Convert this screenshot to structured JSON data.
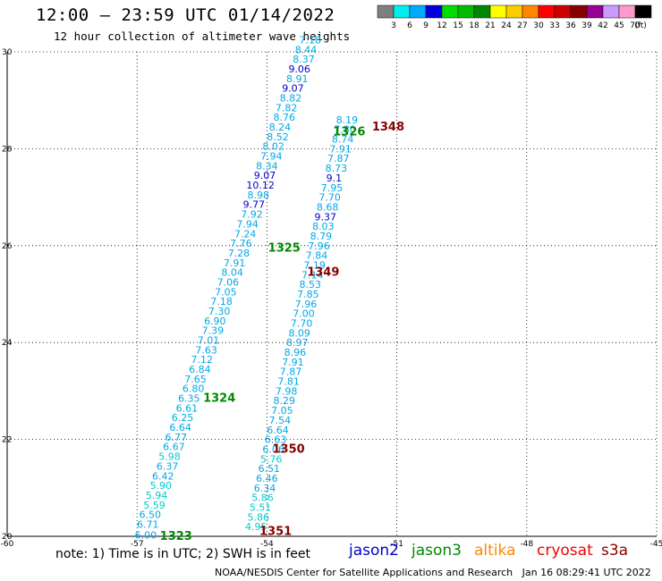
{
  "header": {
    "title": "12:00 — 23:59 UTC 01/14/2022",
    "subtitle": "12 hour collection of altimeter wave heights"
  },
  "colorbar": {
    "colors": [
      "#7f7f7f",
      "#00eeee",
      "#00aaff",
      "#0000dd",
      "#00dd00",
      "#00bb00",
      "#008800",
      "#ffff00",
      "#ffcc00",
      "#ff8800",
      "#ff0000",
      "#cc0000",
      "#880000",
      "#990099",
      "#cc99ff",
      "#ff99cc",
      "#000000"
    ],
    "labels": [
      "3",
      "6",
      "9",
      "12",
      "15",
      "18",
      "21",
      "24",
      "27",
      "30",
      "33",
      "36",
      "39",
      "42",
      "45",
      "70"
    ],
    "unit": "(ft)"
  },
  "chart_data": {
    "type": "scatter",
    "xlim": [
      -60,
      -45
    ],
    "ylim": [
      20,
      30
    ],
    "x_ticks": [
      "-60",
      "-57",
      "-54",
      "-51",
      "-48",
      "-45"
    ],
    "y_ticks": [
      "20",
      "22",
      "24",
      "26",
      "28",
      "30"
    ],
    "grid": true,
    "series": [
      {
        "name": "jason3",
        "color": "#00bb00",
        "points": [
          {
            "pass": "track-A",
            "lon": -56.8,
            "lat": 20.03,
            "swh": "6.00"
          },
          {
            "lon": -56.75,
            "lat": 20.25,
            "swh": "6.71"
          },
          {
            "lon": -56.7,
            "lat": 20.45,
            "swh": "6.50"
          },
          {
            "lon": -56.6,
            "lat": 20.65,
            "swh": "5.59"
          },
          {
            "lon": -56.55,
            "lat": 20.85,
            "swh": "5.94"
          },
          {
            "lon": -56.45,
            "lat": 21.05,
            "swh": "5.90"
          },
          {
            "lon": -56.4,
            "lat": 21.25,
            "swh": "6.42"
          },
          {
            "lon": -56.3,
            "lat": 21.45,
            "swh": "6.37"
          },
          {
            "lon": -56.25,
            "lat": 21.65,
            "swh": "5.98"
          },
          {
            "lon": -56.15,
            "lat": 21.85,
            "swh": "6.67"
          },
          {
            "lon": -56.1,
            "lat": 22.05,
            "swh": "6.77"
          },
          {
            "lon": -56.0,
            "lat": 22.25,
            "swh": "6.64"
          },
          {
            "lon": -55.95,
            "lat": 22.45,
            "swh": "6.25"
          },
          {
            "lon": -55.85,
            "lat": 22.65,
            "swh": "6.61"
          },
          {
            "lon": -55.8,
            "lat": 22.85,
            "swh": "6.35"
          },
          {
            "lon": -55.7,
            "lat": 23.05,
            "swh": "6.80"
          },
          {
            "lon": -55.65,
            "lat": 23.25,
            "swh": "7.65"
          },
          {
            "lon": -55.55,
            "lat": 23.45,
            "swh": "6.84"
          },
          {
            "lon": -55.5,
            "lat": 23.65,
            "swh": "7.12"
          },
          {
            "lon": -55.4,
            "lat": 23.85,
            "swh": "7.63"
          },
          {
            "lon": -55.35,
            "lat": 24.05,
            "swh": "7.01"
          },
          {
            "lon": -55.25,
            "lat": 24.25,
            "swh": "7.39"
          },
          {
            "lon": -55.2,
            "lat": 24.45,
            "swh": "6.90"
          },
          {
            "lon": -55.1,
            "lat": 24.65,
            "swh": "7.30"
          },
          {
            "lon": -55.05,
            "lat": 24.85,
            "swh": "7.18"
          },
          {
            "lon": -54.95,
            "lat": 25.05,
            "swh": "7.05"
          },
          {
            "lon": -54.9,
            "lat": 25.25,
            "swh": "7.06"
          },
          {
            "lon": -54.8,
            "lat": 25.45,
            "swh": "8.04"
          },
          {
            "lon": -54.75,
            "lat": 25.65,
            "swh": "7.91"
          },
          {
            "lon": -54.65,
            "lat": 25.85,
            "swh": "7.28"
          },
          {
            "lon": -54.6,
            "lat": 26.05,
            "swh": "7.76"
          },
          {
            "lon": -54.5,
            "lat": 26.25,
            "swh": "7.24"
          },
          {
            "lon": -54.45,
            "lat": 26.45,
            "swh": "7.94"
          },
          {
            "lon": -54.35,
            "lat": 26.65,
            "swh": "7.92"
          },
          {
            "lon": -54.3,
            "lat": 26.85,
            "swh": "9.77"
          },
          {
            "lon": -54.2,
            "lat": 27.05,
            "swh": "8.98"
          },
          {
            "lon": -54.15,
            "lat": 27.25,
            "swh": "10.12"
          },
          {
            "lon": -54.05,
            "lat": 27.45,
            "swh": "9.07"
          },
          {
            "lon": -54.0,
            "lat": 27.65,
            "swh": "8.34"
          },
          {
            "lon": -53.9,
            "lat": 27.85,
            "swh": "7.94"
          },
          {
            "lon": -53.85,
            "lat": 28.05,
            "swh": "8.02"
          },
          {
            "lon": -53.75,
            "lat": 28.25,
            "swh": "8.52"
          },
          {
            "lon": -53.7,
            "lat": 28.45,
            "swh": "8.24"
          },
          {
            "lon": -53.6,
            "lat": 28.65,
            "swh": "8.76"
          },
          {
            "lon": -53.55,
            "lat": 28.85,
            "swh": "7.82"
          },
          {
            "lon": -53.45,
            "lat": 29.05,
            "swh": "8.82"
          },
          {
            "lon": -53.4,
            "lat": 29.25,
            "swh": "9.07"
          },
          {
            "lon": -53.3,
            "lat": 29.45,
            "swh": "8.91"
          },
          {
            "lon": -53.25,
            "lat": 29.65,
            "swh": "9.06"
          },
          {
            "lon": -53.15,
            "lat": 29.85,
            "swh": "8.37"
          },
          {
            "lon": -53.1,
            "lat": 30.05,
            "swh": "8.44"
          },
          {
            "lon": -53.0,
            "lat": 30.25,
            "swh": "7.18"
          },
          {
            "pass": "track-B",
            "lon": -54.25,
            "lat": 20.2,
            "swh": "4.95"
          },
          {
            "lon": -54.2,
            "lat": 20.4,
            "swh": "5.86"
          },
          {
            "lon": -54.15,
            "lat": 20.6,
            "swh": "5.51"
          },
          {
            "lon": -54.1,
            "lat": 20.8,
            "swh": "5.86"
          },
          {
            "lon": -54.05,
            "lat": 21.0,
            "swh": "6.34"
          },
          {
            "lon": -54.0,
            "lat": 21.2,
            "swh": "6.46"
          },
          {
            "lon": -53.95,
            "lat": 21.4,
            "swh": "6.51"
          },
          {
            "lon": -53.9,
            "lat": 21.6,
            "swh": "5.76"
          },
          {
            "lon": -53.85,
            "lat": 21.8,
            "swh": "6.06"
          },
          {
            "lon": -53.8,
            "lat": 22.0,
            "swh": "6.63"
          },
          {
            "lon": -53.75,
            "lat": 22.2,
            "swh": "6.64"
          },
          {
            "lon": -53.7,
            "lat": 22.4,
            "swh": "7.54"
          },
          {
            "lon": -53.65,
            "lat": 22.6,
            "swh": "7.05"
          },
          {
            "lon": -53.6,
            "lat": 22.8,
            "swh": "8.29"
          },
          {
            "lon": -53.55,
            "lat": 23.0,
            "swh": "7.98"
          },
          {
            "lon": -53.5,
            "lat": 23.2,
            "swh": "7.81"
          },
          {
            "lon": -53.45,
            "lat": 23.4,
            "swh": "7.87"
          },
          {
            "lon": -53.4,
            "lat": 23.6,
            "swh": "7.91"
          },
          {
            "lon": -53.35,
            "lat": 23.8,
            "swh": "8.96"
          },
          {
            "lon": -53.3,
            "lat": 24.0,
            "swh": "8.97"
          },
          {
            "lon": -53.25,
            "lat": 24.2,
            "swh": "8.09"
          },
          {
            "lon": -53.2,
            "lat": 24.4,
            "swh": "7.70"
          },
          {
            "lon": -53.15,
            "lat": 24.6,
            "swh": "7.00"
          },
          {
            "lon": -53.1,
            "lat": 24.8,
            "swh": "7.96"
          },
          {
            "lon": -53.05,
            "lat": 25.0,
            "swh": "7.85"
          },
          {
            "lon": -53.0,
            "lat": 25.2,
            "swh": "8.53"
          },
          {
            "lon": -52.95,
            "lat": 25.4,
            "swh": "7.14"
          },
          {
            "lon": -52.9,
            "lat": 25.6,
            "swh": "7.19"
          },
          {
            "lon": -52.85,
            "lat": 25.8,
            "swh": "7.84"
          },
          {
            "lon": -52.8,
            "lat": 26.0,
            "swh": "7.96"
          },
          {
            "lon": -52.75,
            "lat": 26.2,
            "swh": "8.79"
          },
          {
            "lon": -52.7,
            "lat": 26.4,
            "swh": "8.03"
          },
          {
            "lon": -52.65,
            "lat": 26.6,
            "swh": "9.37"
          },
          {
            "lon": -52.6,
            "lat": 26.8,
            "swh": "8.68"
          },
          {
            "lon": -52.55,
            "lat": 27.0,
            "swh": "7.70"
          },
          {
            "lon": -52.5,
            "lat": 27.2,
            "swh": "7.95"
          },
          {
            "lon": -52.45,
            "lat": 27.4,
            "swh": "9.1"
          },
          {
            "lon": -52.4,
            "lat": 27.6,
            "swh": "8.73"
          },
          {
            "lon": -52.35,
            "lat": 27.8,
            "swh": "7.87"
          },
          {
            "lon": -52.3,
            "lat": 28.0,
            "swh": "7.91"
          },
          {
            "lon": -52.25,
            "lat": 28.2,
            "swh": "8.74"
          },
          {
            "lon": -52.2,
            "lat": 28.4,
            "swh": "7.80"
          },
          {
            "lon": -52.15,
            "lat": 28.6,
            "swh": "8.19"
          }
        ]
      }
    ],
    "pass_labels": [
      {
        "text": "1323",
        "color": "#008800"
      },
      {
        "text": "1324",
        "color": "#008800"
      },
      {
        "text": "1325",
        "color": "#008800"
      },
      {
        "text": "1326",
        "color": "#008800"
      },
      {
        "text": "1348",
        "color": "#880000"
      },
      {
        "text": "1349",
        "color": "#880000"
      },
      {
        "text": "1350",
        "color": "#880000"
      },
      {
        "text": "1351",
        "color": "#880000"
      }
    ]
  },
  "footer": {
    "note": "note: 1) Time is in UTC; 2) SWH is in feet",
    "credit": "NOAA/NESDIS Center for Satellite Applications and Research   Jan 16 08:29:41 UTC 2022",
    "satellites": [
      {
        "name": "jason2",
        "color": "#0000cc"
      },
      {
        "name": "jason3",
        "color": "#008800"
      },
      {
        "name": "altika",
        "color": "#ff8800"
      },
      {
        "name": "cryosat",
        "color": "#ee0000"
      },
      {
        "name": "s3a",
        "color": "#880000"
      }
    ]
  }
}
